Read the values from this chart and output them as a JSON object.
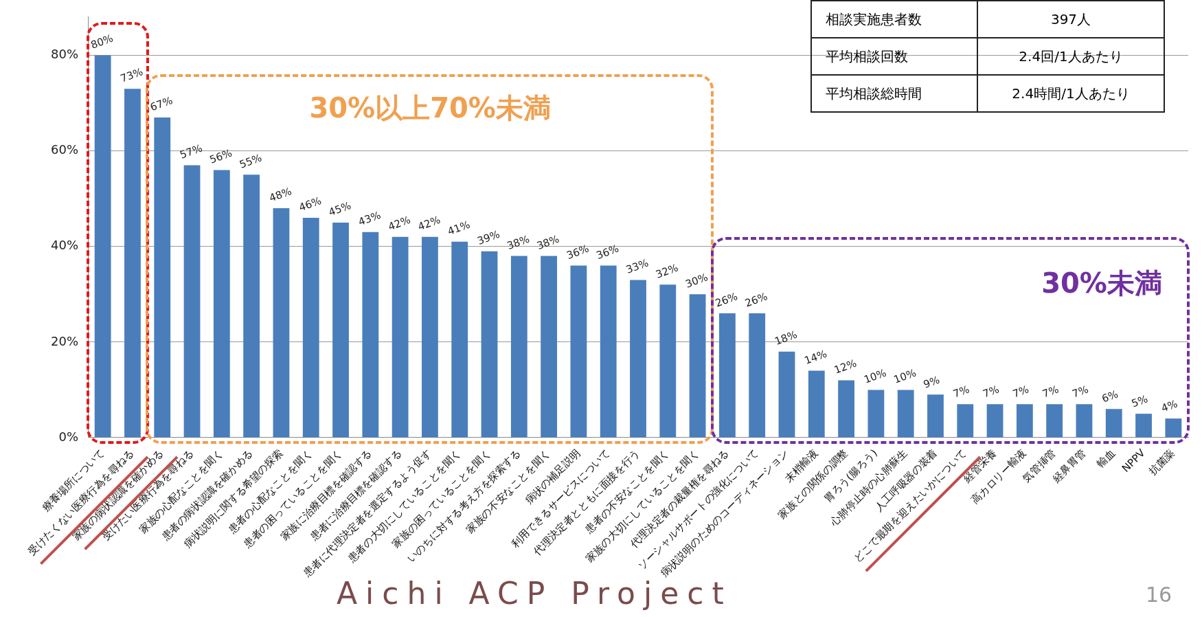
{
  "chart_data": {
    "type": "bar",
    "categories": [
      "療養場所について",
      "受けたくない医療行為を尋ねる",
      "家族の病状認識を確かめる",
      "受けたい医療行為を尋ねる",
      "家族の心配なことを聞く",
      "患者の病状認識を確かめる",
      "病状説明に関する希望の探索",
      "患者の心配なことを聞く",
      "患者の困っていることを聞く",
      "家族に治療目標を確認する",
      "患者に治療目標を確認する",
      "患者に代理決定者を選定するよう促す",
      "患者の大切にしていることを聞く",
      "家族の困っていることを聞く",
      "いのちに対する考え方を探索する",
      "家族の不安なことを聞く",
      "病状の補足説明",
      "利用できるサービスについて",
      "代理決定者とともに面接を行う",
      "患者の不安なことを聞く",
      "家族の大切にしていることを聞く",
      "代理決定者の裁量権を尋ねる",
      "ソーシャルサポートの強化について",
      "病状説明のためのコーディネーション",
      "末梢輸液",
      "家族との関係の調整",
      "胃ろう(腸ろう)",
      "心肺停止時の心肺蘇生",
      "人工呼吸器の装着",
      "どこで最期を迎えたいかについて",
      "経管栄養",
      "高カロリー輸液",
      "気管挿管",
      "経鼻胃管",
      "輸血",
      "NPPV",
      "抗菌薬"
    ],
    "values": [
      80,
      73,
      67,
      57,
      56,
      55,
      48,
      46,
      45,
      43,
      42,
      42,
      41,
      39,
      38,
      38,
      36,
      36,
      33,
      32,
      30,
      26,
      26,
      18,
      14,
      12,
      10,
      10,
      9,
      7,
      7,
      7,
      7,
      7,
      6,
      5,
      4
    ],
    "value_labels": [
      "80%",
      "73%",
      "67%",
      "57%",
      "56%",
      "55%",
      "48%",
      "46%",
      "45%",
      "43%",
      "42%",
      "42%",
      "41%",
      "39%",
      "38%",
      "38%",
      "36%",
      "36%",
      "33%",
      "32%",
      "30%",
      "26%",
      "26%",
      "18%",
      "14%",
      "12%",
      "10%",
      "10%",
      "9%",
      "7%",
      "7%",
      "7%",
      "7%",
      "7%",
      "6%",
      "5%",
      "4%"
    ],
    "color": "#4a7ebb",
    "ylim": [
      0,
      88
    ],
    "yticks": [
      {
        "value": 0,
        "label": "0%"
      },
      {
        "value": 20,
        "label": "20%"
      },
      {
        "value": 40,
        "label": "40%"
      },
      {
        "value": 60,
        "label": "60%"
      },
      {
        "value": 80,
        "label": "80%"
      }
    ],
    "grid": "y",
    "legend": false,
    "annotations": [
      "30%以上70%未満",
      "30%未満",
      "相談実施患者数",
      "397人",
      "平均相談回数",
      "2.4回/1人あたり",
      "平均相談総時間",
      "2.4時間/1人あたり",
      "Aichi  ACP  Project",
      "16"
    ]
  }
}
